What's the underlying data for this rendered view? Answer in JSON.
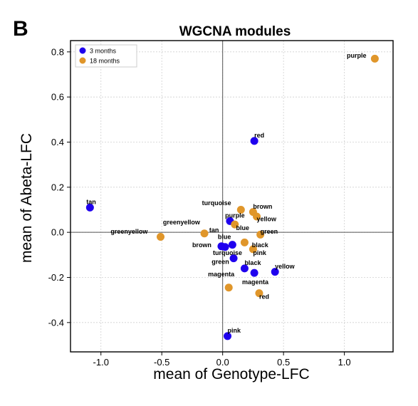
{
  "panel_label": "B",
  "chart_data": {
    "type": "scatter",
    "title": "WGCNA modules",
    "xlabel": "mean of Genotype-LFC",
    "ylabel": "mean of Abeta-LFC",
    "xlim": [
      -1.25,
      1.4
    ],
    "ylim": [
      -0.53,
      0.85
    ],
    "xticks": [
      -1.0,
      -0.5,
      0.0,
      0.5,
      1.0
    ],
    "xtick_labels": [
      "-1.0",
      "-0.5",
      "0.0",
      "0.5",
      "1.0"
    ],
    "yticks": [
      -0.4,
      -0.2,
      0.0,
      0.2,
      0.4,
      0.6,
      0.8
    ],
    "ytick_labels": [
      "-0.4",
      "-0.2",
      "0.0",
      "0.2",
      "0.4",
      "0.6",
      "0.8"
    ],
    "grid": true,
    "zero_lines": true,
    "legend_position": "top-left",
    "series": [
      {
        "name": "3 months",
        "color": "#1f00ee",
        "points": [
          {
            "label": "red",
            "x": 0.26,
            "y": 0.405
          },
          {
            "label": "tan",
            "x": -1.09,
            "y": 0.11
          },
          {
            "label": "purple",
            "x": 0.06,
            "y": 0.05
          },
          {
            "label": "blue",
            "x": 0.08,
            "y": -0.055
          },
          {
            "label": "brown",
            "x": -0.01,
            "y": -0.062
          },
          {
            "label": "turquoise",
            "x": 0.02,
            "y": -0.065
          },
          {
            "label": "green",
            "x": 0.09,
            "y": -0.115
          },
          {
            "label": "black",
            "x": 0.18,
            "y": -0.16
          },
          {
            "label": "magenta",
            "x": 0.26,
            "y": -0.18
          },
          {
            "label": "yellow",
            "x": 0.43,
            "y": -0.175
          },
          {
            "label": "pink",
            "x": 0.04,
            "y": -0.46
          }
        ]
      },
      {
        "name": "18 months",
        "color": "#e0962a",
        "points": [
          {
            "label": "purple",
            "x": 1.25,
            "y": 0.77
          },
          {
            "label": "turquoise",
            "x": 0.15,
            "y": 0.1
          },
          {
            "label": "brown",
            "x": 0.25,
            "y": 0.09
          },
          {
            "label": "yellow",
            "x": 0.28,
            "y": 0.07
          },
          {
            "label": "blue",
            "x": 0.1,
            "y": 0.035
          },
          {
            "label": "greenyellow",
            "x": -0.51,
            "y": -0.02
          },
          {
            "label": "tan",
            "x": -0.15,
            "y": -0.005
          },
          {
            "label": "green",
            "x": 0.31,
            "y": -0.01
          },
          {
            "label": "black",
            "x": 0.18,
            "y": -0.045
          },
          {
            "label": "pink",
            "x": 0.25,
            "y": -0.075
          },
          {
            "label": "magenta",
            "x": 0.05,
            "y": -0.245
          },
          {
            "label": "red",
            "x": 0.3,
            "y": -0.27
          }
        ]
      }
    ],
    "annotations": [
      {
        "text": "purple",
        "x": 1.02,
        "y": 0.775
      },
      {
        "text": "red",
        "x": 0.26,
        "y": 0.42
      },
      {
        "text": "tan",
        "x": -1.12,
        "y": 0.125
      },
      {
        "text": "turquoise",
        "x": -0.17,
        "y": 0.12
      },
      {
        "text": "brown",
        "x": 0.25,
        "y": 0.105
      },
      {
        "text": "purple",
        "x": 0.02,
        "y": 0.065
      },
      {
        "text": "yellow",
        "x": 0.28,
        "y": 0.05
      },
      {
        "text": "greenyellow",
        "x": -0.49,
        "y": 0.035
      },
      {
        "text": "blue",
        "x": 0.11,
        "y": 0.01
      },
      {
        "text": "green",
        "x": 0.31,
        "y": -0.005
      },
      {
        "text": "greenyellow",
        "x": -0.92,
        "y": -0.005
      },
      {
        "text": "tan",
        "x": -0.11,
        "y": 0.0
      },
      {
        "text": "blue",
        "x": -0.04,
        "y": -0.03
      },
      {
        "text": "black",
        "x": 0.24,
        "y": -0.065
      },
      {
        "text": "brown",
        "x": -0.25,
        "y": -0.065
      },
      {
        "text": "turquoise",
        "x": -0.08,
        "y": -0.1
      },
      {
        "text": "pink",
        "x": 0.25,
        "y": -0.1
      },
      {
        "text": "green",
        "x": -0.09,
        "y": -0.14
      },
      {
        "text": "black",
        "x": 0.18,
        "y": -0.145
      },
      {
        "text": "yellow",
        "x": 0.43,
        "y": -0.16
      },
      {
        "text": "magenta",
        "x": -0.12,
        "y": -0.195
      },
      {
        "text": "magenta",
        "x": 0.16,
        "y": -0.23
      },
      {
        "text": "red",
        "x": 0.3,
        "y": -0.295
      },
      {
        "text": "pink",
        "x": 0.04,
        "y": -0.445
      }
    ]
  }
}
